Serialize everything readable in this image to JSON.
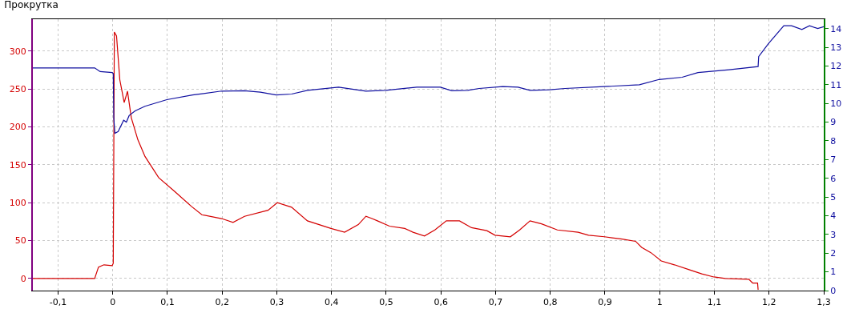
{
  "chart_data": {
    "type": "line",
    "title": "Прокрутка",
    "xlim": [
      -0.146,
      1.3
    ],
    "xticks": [
      {
        "value": -0.1,
        "label": "-0,1"
      },
      0,
      {
        "value": 0.1,
        "label": "0,1"
      },
      {
        "value": 0.2,
        "label": "0,2"
      },
      {
        "value": 0.3,
        "label": "0,3"
      },
      {
        "value": 0.4,
        "label": "0,4"
      },
      {
        "value": 0.5,
        "label": "0,5"
      },
      {
        "value": 0.6,
        "label": "0,6"
      },
      {
        "value": 0.7,
        "label": "0,7"
      },
      {
        "value": 0.8,
        "label": "0,8"
      },
      {
        "value": 0.9,
        "label": "0,9"
      },
      1,
      {
        "value": 1.1,
        "label": "1,1"
      },
      {
        "value": 1.2,
        "label": "1,2"
      },
      {
        "value": 1.3,
        "label": "1,3"
      }
    ],
    "ylim": [
      -16,
      342
    ],
    "yticks": [
      0,
      50,
      100,
      150,
      200,
      250,
      300
    ],
    "y2lim": [
      0,
      14.5
    ],
    "y2ticks": [
      0,
      1,
      2,
      3,
      4,
      5,
      6,
      7,
      8,
      9,
      10,
      11,
      12,
      13,
      14
    ],
    "grid": true,
    "marker": "none",
    "line_style": "solid",
    "series": [
      {
        "color": "#d40000",
        "x": [
          -0.146,
          -0.033,
          -0.026,
          -0.016,
          -0.001,
          0.001,
          0.003,
          0.007,
          0.013,
          0.021,
          0.027,
          0.034,
          0.046,
          0.059,
          0.084,
          0.113,
          0.144,
          0.163,
          0.199,
          0.22,
          0.241,
          0.284,
          0.301,
          0.327,
          0.356,
          0.399,
          0.424,
          0.449,
          0.463,
          0.474,
          0.484,
          0.506,
          0.534,
          0.549,
          0.57,
          0.589,
          0.61,
          0.634,
          0.656,
          0.684,
          0.699,
          0.727,
          0.744,
          0.763,
          0.784,
          0.813,
          0.851,
          0.87,
          0.899,
          0.931,
          0.956,
          0.967,
          0.984,
          1.003,
          1.027,
          1.056,
          1.077,
          1.099,
          1.12,
          1.163,
          1.17,
          1.179,
          1.18
        ],
        "values": [
          0,
          0,
          15,
          18,
          17,
          20,
          325,
          320,
          262,
          232,
          247,
          212,
          183,
          161,
          133,
          115,
          95,
          84,
          79,
          74,
          82,
          90,
          100,
          94,
          76,
          66,
          61,
          71,
          82,
          79,
          76,
          69,
          66,
          61,
          56,
          64,
          76,
          76,
          67,
          63,
          57,
          55,
          64,
          76,
          72,
          64,
          61,
          57,
          55,
          52,
          49,
          41,
          34,
          23,
          18,
          11,
          6,
          2,
          0,
          -1,
          -6,
          -6,
          -15
        ]
      },
      {
        "color": "#1010a0",
        "axis": "y2",
        "x": [
          -0.146,
          -0.033,
          -0.023,
          -0.001,
          0.001,
          0.002,
          0.004,
          0.01,
          0.02,
          0.025,
          0.03,
          0.041,
          0.059,
          0.099,
          0.146,
          0.199,
          0.241,
          0.27,
          0.299,
          0.327,
          0.356,
          0.413,
          0.463,
          0.499,
          0.556,
          0.599,
          0.62,
          0.649,
          0.67,
          0.713,
          0.741,
          0.763,
          0.799,
          0.827,
          0.899,
          0.963,
          0.999,
          1.041,
          1.07,
          1.127,
          1.18,
          1.181,
          1.199,
          1.227,
          1.241,
          1.26,
          1.274,
          1.289,
          1.3
        ],
        "values": [
          11.9,
          11.9,
          11.7,
          11.65,
          11.6,
          9.2,
          8.4,
          8.5,
          9.1,
          9.0,
          9.35,
          9.6,
          9.85,
          10.2,
          10.45,
          10.66,
          10.68,
          10.6,
          10.45,
          10.5,
          10.7,
          10.87,
          10.66,
          10.7,
          10.87,
          10.87,
          10.68,
          10.7,
          10.8,
          10.9,
          10.87,
          10.7,
          10.73,
          10.8,
          10.9,
          11.0,
          11.28,
          11.4,
          11.65,
          11.8,
          11.97,
          12.5,
          13.2,
          14.15,
          14.15,
          13.95,
          14.15,
          14.0,
          14.1
        ]
      }
    ]
  }
}
